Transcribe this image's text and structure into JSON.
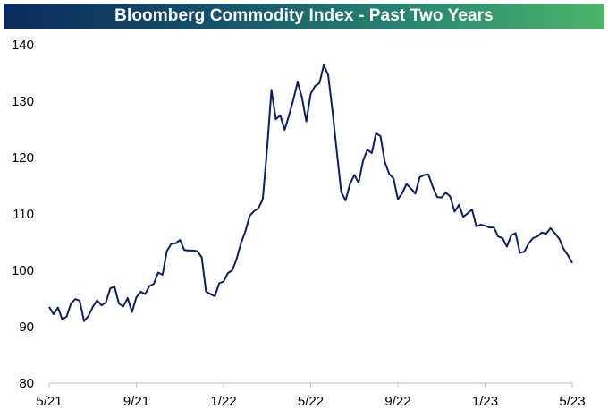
{
  "chart_data": {
    "type": "line",
    "title": "Bloomberg Commodity Index - Past Two Years",
    "xlabel": "",
    "ylabel": "",
    "ylim": [
      80,
      140
    ],
    "yticks": [
      80,
      90,
      100,
      110,
      120,
      130,
      140
    ],
    "xticks": [
      "5/21",
      "9/21",
      "1/22",
      "5/22",
      "9/22",
      "1/23",
      "5/23"
    ],
    "grid": false,
    "legend": "none",
    "line_color": "#0d1f5c",
    "series": [
      {
        "x": [
          0.0,
          0.05,
          0.1,
          0.15,
          0.2,
          0.25,
          0.3,
          0.35,
          0.4,
          0.45,
          0.5,
          0.55,
          0.6,
          0.65,
          0.7,
          0.75,
          0.8,
          0.85,
          0.9,
          0.95,
          1.0,
          1.05,
          1.1,
          1.15,
          1.2,
          1.25,
          1.3,
          1.35,
          1.4,
          1.45,
          1.5,
          1.55,
          1.6,
          1.65,
          1.7,
          1.75,
          1.8,
          1.85,
          1.9,
          1.95,
          2.0,
          2.05,
          2.1,
          2.15,
          2.2,
          2.25,
          2.3,
          2.35,
          2.4,
          2.45,
          2.5,
          2.55,
          2.6,
          2.65,
          2.7,
          2.75,
          2.8,
          2.85,
          2.9,
          2.95,
          3.0,
          3.05,
          3.1,
          3.15,
          3.2,
          3.25,
          3.3,
          3.35,
          3.4,
          3.45,
          3.5,
          3.55,
          3.6,
          3.65,
          3.7,
          3.75,
          3.8,
          3.85,
          3.9,
          3.95,
          4.0,
          4.05,
          4.1,
          4.15,
          4.2,
          4.25,
          4.3,
          4.35,
          4.4,
          4.45,
          4.5,
          4.55,
          4.6,
          4.65,
          4.7,
          4.75,
          4.8,
          4.85,
          4.9,
          4.95,
          5.0,
          5.05,
          5.1,
          5.15,
          5.2,
          5.25,
          5.3,
          5.35,
          5.4,
          5.45,
          5.5,
          5.55,
          5.6,
          5.65,
          5.7,
          5.75,
          5.8,
          5.85,
          5.9,
          5.95,
          6.0
        ],
        "values": [
          93.5,
          92.2,
          93.4,
          91.3,
          91.8,
          94.1,
          94.9,
          94.6,
          91.0,
          91.9,
          93.5,
          94.7,
          93.8,
          94.3,
          96.8,
          97.1,
          94.1,
          93.6,
          95.1,
          92.6,
          95.2,
          96.2,
          95.8,
          97.2,
          97.6,
          99.6,
          99.2,
          103.4,
          104.7,
          104.8,
          105.4,
          103.6,
          103.5,
          103.5,
          103.4,
          102.3,
          96.2,
          95.8,
          95.4,
          97.7,
          98.0,
          99.5,
          100.0,
          102.0,
          104.8,
          106.9,
          109.7,
          110.5,
          111.0,
          112.6,
          121.7,
          132.0,
          126.8,
          127.5,
          124.9,
          127.4,
          130.2,
          133.4,
          130.6,
          126.4,
          131.3,
          132.7,
          133.2,
          136.4,
          134.7,
          128.2,
          121.0,
          113.9,
          112.4,
          115.3,
          116.9,
          115.5,
          119.4,
          121.4,
          120.8,
          124.3,
          123.8,
          119.2,
          117.1,
          116.3,
          112.6,
          113.7,
          115.3,
          114.5,
          113.6,
          116.5,
          116.9,
          117.0,
          114.8,
          113.0,
          112.9,
          113.8,
          113.1,
          110.4,
          111.6,
          109.5,
          110.1,
          110.8,
          107.8,
          108.1,
          107.9,
          107.6,
          107.6,
          106.0,
          105.7,
          104.2,
          106.2,
          106.6,
          103.1,
          103.3,
          104.8,
          105.7,
          106.0,
          106.7,
          106.5,
          107.5,
          106.6,
          105.6,
          103.8,
          102.7,
          101.3
        ]
      }
    ]
  }
}
